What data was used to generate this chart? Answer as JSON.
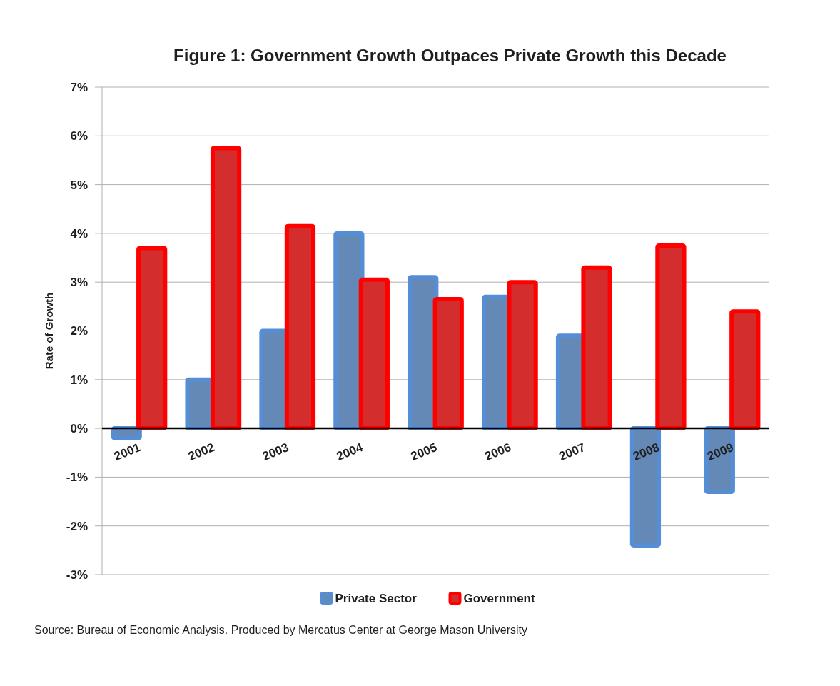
{
  "chart_data": {
    "type": "bar",
    "title": "Figure 1: Government Growth Outpaces Private Growth this Decade",
    "ylabel": "Rate of Growth",
    "categories": [
      "2001",
      "2002",
      "2003",
      "2004",
      "2005",
      "2006",
      "2007",
      "2008",
      "2009"
    ],
    "series": [
      {
        "name": "Private Sector",
        "color": "#558ed5",
        "values": [
          -0.2,
          1.0,
          2.0,
          4.0,
          3.1,
          2.7,
          1.9,
          -2.4,
          -1.3
        ]
      },
      {
        "name": "Government",
        "color": "#ff0000",
        "values": [
          3.7,
          5.75,
          4.15,
          3.05,
          2.65,
          3.0,
          3.3,
          3.75,
          2.4
        ]
      }
    ],
    "ylim": [
      -3,
      7
    ],
    "yticks": [
      {
        "value": -3,
        "label": "-3%"
      },
      {
        "value": -2,
        "label": "-2%"
      },
      {
        "value": -1,
        "label": "-1%"
      },
      {
        "value": 0,
        "label": "0%"
      },
      {
        "value": 1,
        "label": "1%"
      },
      {
        "value": 2,
        "label": "2%"
      },
      {
        "value": 3,
        "label": "3%"
      },
      {
        "value": 4,
        "label": "4%"
      },
      {
        "value": 5,
        "label": "5%"
      },
      {
        "value": 6,
        "label": "6%"
      },
      {
        "value": 7,
        "label": "7%"
      }
    ],
    "grid": "y",
    "legend": "bottom",
    "annotations": [
      "Source: Bureau of Economic Analysis. Produced by Mercatus Center at George Mason University"
    ]
  }
}
